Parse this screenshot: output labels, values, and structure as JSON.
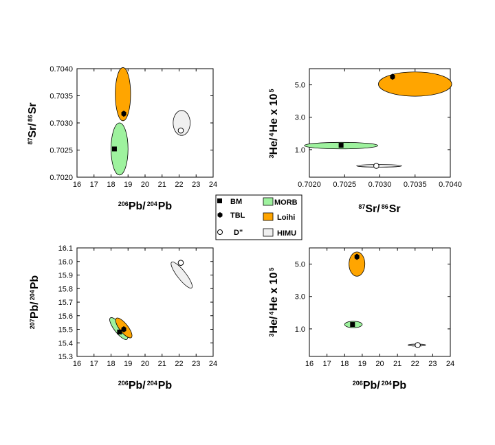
{
  "legend": {
    "markers": [
      {
        "key": "BM",
        "label": "BM",
        "symbol": "square"
      },
      {
        "key": "TBL",
        "label": "TBL",
        "symbol": "hexagon"
      },
      {
        "key": "D",
        "label": "D\"",
        "symbol": "circle"
      }
    ],
    "fields": [
      {
        "key": "MORB",
        "label": "MORB",
        "color": "#9ef29e"
      },
      {
        "key": "Loihi",
        "label": "Loihi",
        "color": "#ffa500"
      },
      {
        "key": "HIMU",
        "label": "HIMU",
        "color": "#f0f0f0"
      }
    ]
  },
  "chart_data": [
    {
      "id": "sr-pb",
      "type": "scatter",
      "xlabel": {
        "sup1": "206",
        "t1": "Pb/",
        "sup2": "204",
        "t2": "Pb"
      },
      "ylabel": {
        "sup1": "87",
        "t1": "Sr/",
        "sup2": "86",
        "t2": "Sr"
      },
      "xlim": [
        16,
        24
      ],
      "ylim": [
        0.702,
        0.704
      ],
      "xticks": [
        "16",
        "17",
        "18",
        "19",
        "20",
        "21",
        "22",
        "23",
        "24"
      ],
      "yticks": [
        "0.7020",
        "0.7025",
        "0.7030",
        "0.7035",
        "0.7040"
      ],
      "fields": [
        {
          "name": "MORB",
          "cx": 18.5,
          "cy": 0.70252,
          "rx": 0.5,
          "ry": 0.00048,
          "rot": 0
        },
        {
          "name": "Loihi",
          "cx": 18.7,
          "cy": 0.70353,
          "rx": 0.45,
          "ry": 0.00049,
          "rot": 0
        },
        {
          "name": "HIMU",
          "cx": 22.15,
          "cy": 0.703,
          "rx": 0.5,
          "ry": 0.00023,
          "rot": 0
        }
      ],
      "points": [
        {
          "name": "BM",
          "x": 18.2,
          "y": 0.70252
        },
        {
          "name": "TBL",
          "x": 18.75,
          "y": 0.70317
        },
        {
          "name": "D\"",
          "x": 22.1,
          "y": 0.70286
        }
      ]
    },
    {
      "id": "he-sr",
      "type": "scatter",
      "xlabel": {
        "sup1": "87",
        "t1": "Sr/",
        "sup2": "86",
        "t2": "Sr"
      },
      "ylabel": {
        "sup1": "3",
        "t1": "He/",
        "sup2": "4",
        "t2": "He x 10",
        "sup3": "5"
      },
      "xlim": [
        0.702,
        0.704
      ],
      "ylim": [
        -0.7,
        6.0
      ],
      "xticks": [
        "0.7020",
        "0.7025",
        "0.7030",
        "0.7035",
        "0.7040"
      ],
      "yticks": [
        "1.0",
        "3.0",
        "5.0"
      ],
      "ytick_values": [
        1.0,
        3.0,
        5.0
      ],
      "fields": [
        {
          "name": "MORB",
          "cx": 0.70245,
          "cy": 1.25,
          "rx": 0.00052,
          "ry": 0.2,
          "rot": 0
        },
        {
          "name": "Loihi",
          "cx": 0.7035,
          "cy": 5.05,
          "rx": 0.00052,
          "ry": 0.75,
          "rot": 0
        },
        {
          "name": "HIMU",
          "cx": 0.70299,
          "cy": 0.0,
          "rx": 0.00032,
          "ry": 0.08,
          "rot": 0
        }
      ],
      "points": [
        {
          "name": "BM",
          "x": 0.70245,
          "y": 1.27
        },
        {
          "name": "TBL",
          "x": 0.70318,
          "y": 5.5
        },
        {
          "name": "D\"",
          "x": 0.70295,
          "y": 0.0
        }
      ]
    },
    {
      "id": "pb-pb",
      "type": "scatter",
      "xlabel": {
        "sup1": "206",
        "t1": "Pb/",
        "sup2": "204",
        "t2": "Pb"
      },
      "ylabel": {
        "sup1": "207",
        "t1": "Pb/",
        "sup2": "204",
        "t2": "Pb"
      },
      "xlim": [
        16,
        24
      ],
      "ylim": [
        15.3,
        16.1
      ],
      "xticks": [
        "16",
        "17",
        "18",
        "19",
        "20",
        "21",
        "22",
        "23",
        "24"
      ],
      "yticks": [
        "15.3",
        "15.4",
        "15.5",
        "15.6",
        "15.7",
        "15.8",
        "15.9",
        "16.0",
        "16.1"
      ],
      "fields": [
        {
          "name": "MORB",
          "cx": 18.45,
          "cy": 15.505,
          "rx": 0.25,
          "ry": 0.1,
          "rot": 38
        },
        {
          "name": "Loihi",
          "cx": 18.75,
          "cy": 15.51,
          "rx": 0.25,
          "ry": 0.09,
          "rot": 38
        },
        {
          "name": "HIMU",
          "cx": 22.15,
          "cy": 15.9,
          "rx": 0.25,
          "ry": 0.12,
          "rot": 38
        }
      ],
      "points": [
        {
          "name": "BM",
          "x": 18.5,
          "y": 15.48
        },
        {
          "name": "TBL",
          "x": 18.75,
          "y": 15.5
        },
        {
          "name": "D\"",
          "x": 22.1,
          "y": 15.99
        }
      ]
    },
    {
      "id": "he-pb",
      "type": "scatter",
      "xlabel": {
        "sup1": "206",
        "t1": "Pb/",
        "sup2": "204",
        "t2": "Pb"
      },
      "ylabel": {
        "sup1": "3",
        "t1": "He/",
        "sup2": "4",
        "t2": "He x 10",
        "sup3": "5"
      },
      "xlim": [
        16,
        24
      ],
      "ylim": [
        -0.7,
        6.0
      ],
      "xticks": [
        "16",
        "17",
        "18",
        "19",
        "20",
        "21",
        "22",
        "23",
        "24"
      ],
      "yticks": [
        "1.0",
        "3.0",
        "5.0"
      ],
      "ytick_values": [
        1.0,
        3.0,
        5.0
      ],
      "fields": [
        {
          "name": "MORB",
          "cx": 18.5,
          "cy": 1.27,
          "rx": 0.5,
          "ry": 0.2,
          "rot": 0
        },
        {
          "name": "Loihi",
          "cx": 18.7,
          "cy": 5.0,
          "rx": 0.45,
          "ry": 0.75,
          "rot": 0
        },
        {
          "name": "HIMU",
          "cx": 22.1,
          "cy": 0.0,
          "rx": 0.5,
          "ry": 0.06,
          "rot": 0
        }
      ],
      "points": [
        {
          "name": "BM",
          "x": 18.45,
          "y": 1.27
        },
        {
          "name": "TBL",
          "x": 18.7,
          "y": 5.45
        },
        {
          "name": "D\"",
          "x": 22.15,
          "y": 0.0
        }
      ]
    }
  ]
}
